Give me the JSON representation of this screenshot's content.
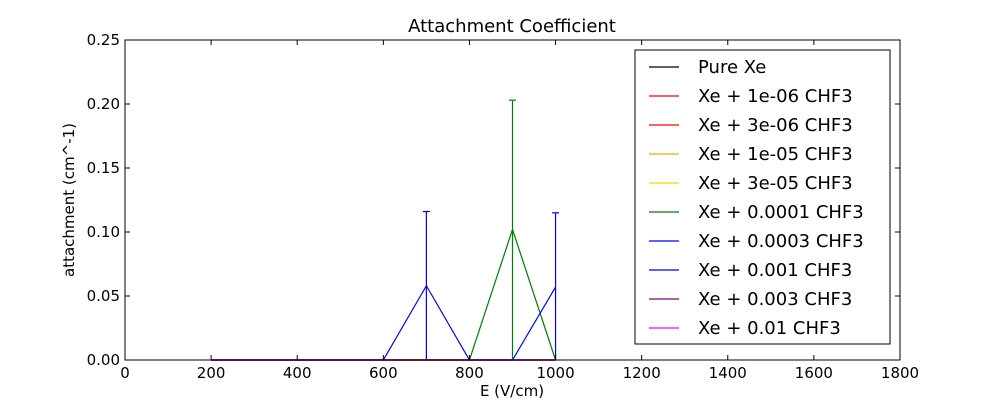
{
  "chart_data": {
    "type": "line",
    "title": "Attachment Coefficient",
    "xlabel": "E (V/cm)",
    "ylabel": "attachment (cm^-1)",
    "xlim": [
      0,
      1800
    ],
    "ylim": [
      0,
      0.25
    ],
    "x_ticks": [
      "0",
      "200",
      "400",
      "600",
      "800",
      "1000",
      "1200",
      "1400",
      "1600",
      "1800"
    ],
    "y_ticks": [
      "0.00",
      "0.05",
      "0.10",
      "0.15",
      "0.20",
      "0.25"
    ],
    "grid": false,
    "legend_position": "top-right",
    "x": [
      200,
      300,
      400,
      500,
      600,
      700,
      800,
      900,
      1000
    ],
    "series": [
      {
        "name": "Pure Xe",
        "color": "#000000",
        "values": [
          0,
          0,
          0,
          0,
          0,
          0,
          0,
          0,
          0
        ]
      },
      {
        "name": "Xe + 1e-06 CHF3",
        "color": "#ff0000",
        "values": [
          0,
          0,
          0,
          0,
          0,
          0,
          0,
          0,
          0
        ]
      },
      {
        "name": "Xe + 3e-06 CHF3",
        "color": "#ff0000",
        "values": [
          0,
          0,
          0,
          0,
          0,
          0,
          0,
          0,
          0
        ]
      },
      {
        "name": "Xe + 1e-05 CHF3",
        "color": "#ffa500",
        "values": [
          0,
          0,
          0,
          0,
          0,
          0,
          0,
          0,
          0
        ]
      },
      {
        "name": "Xe + 3e-05 CHF3",
        "color": "#ffd700",
        "values": [
          0,
          0,
          0,
          0,
          0,
          0,
          0,
          0,
          0
        ]
      },
      {
        "name": "Xe + 0.0001 CHF3",
        "color": "#008000",
        "values": [
          0,
          0,
          0,
          0,
          0,
          0,
          0,
          0.102,
          0
        ],
        "errors": [
          0,
          0,
          0,
          0,
          0,
          0,
          0,
          0.101,
          0
        ]
      },
      {
        "name": "Xe + 0.0003 CHF3",
        "color": "#0000ff",
        "values": [
          0,
          0,
          0,
          0,
          0,
          0,
          0,
          0,
          0.057
        ],
        "errors": [
          0,
          0,
          0,
          0,
          0,
          0,
          0,
          0,
          0.058
        ]
      },
      {
        "name": "Xe + 0.001 CHF3",
        "color": "#0000ff",
        "values": [
          0,
          0,
          0,
          0,
          0,
          0.058,
          0,
          0,
          0
        ],
        "errors": [
          0,
          0,
          0,
          0,
          0,
          0.058,
          0,
          0,
          0
        ]
      },
      {
        "name": "Xe + 0.003 CHF3",
        "color": "#800080",
        "values": [
          0,
          0,
          0,
          0,
          0,
          0,
          0,
          0,
          0
        ]
      },
      {
        "name": "Xe + 0.01 CHF3",
        "color": "#ff00ff",
        "values": [
          0,
          0,
          0,
          0,
          0,
          0,
          0,
          0,
          0
        ]
      }
    ]
  }
}
